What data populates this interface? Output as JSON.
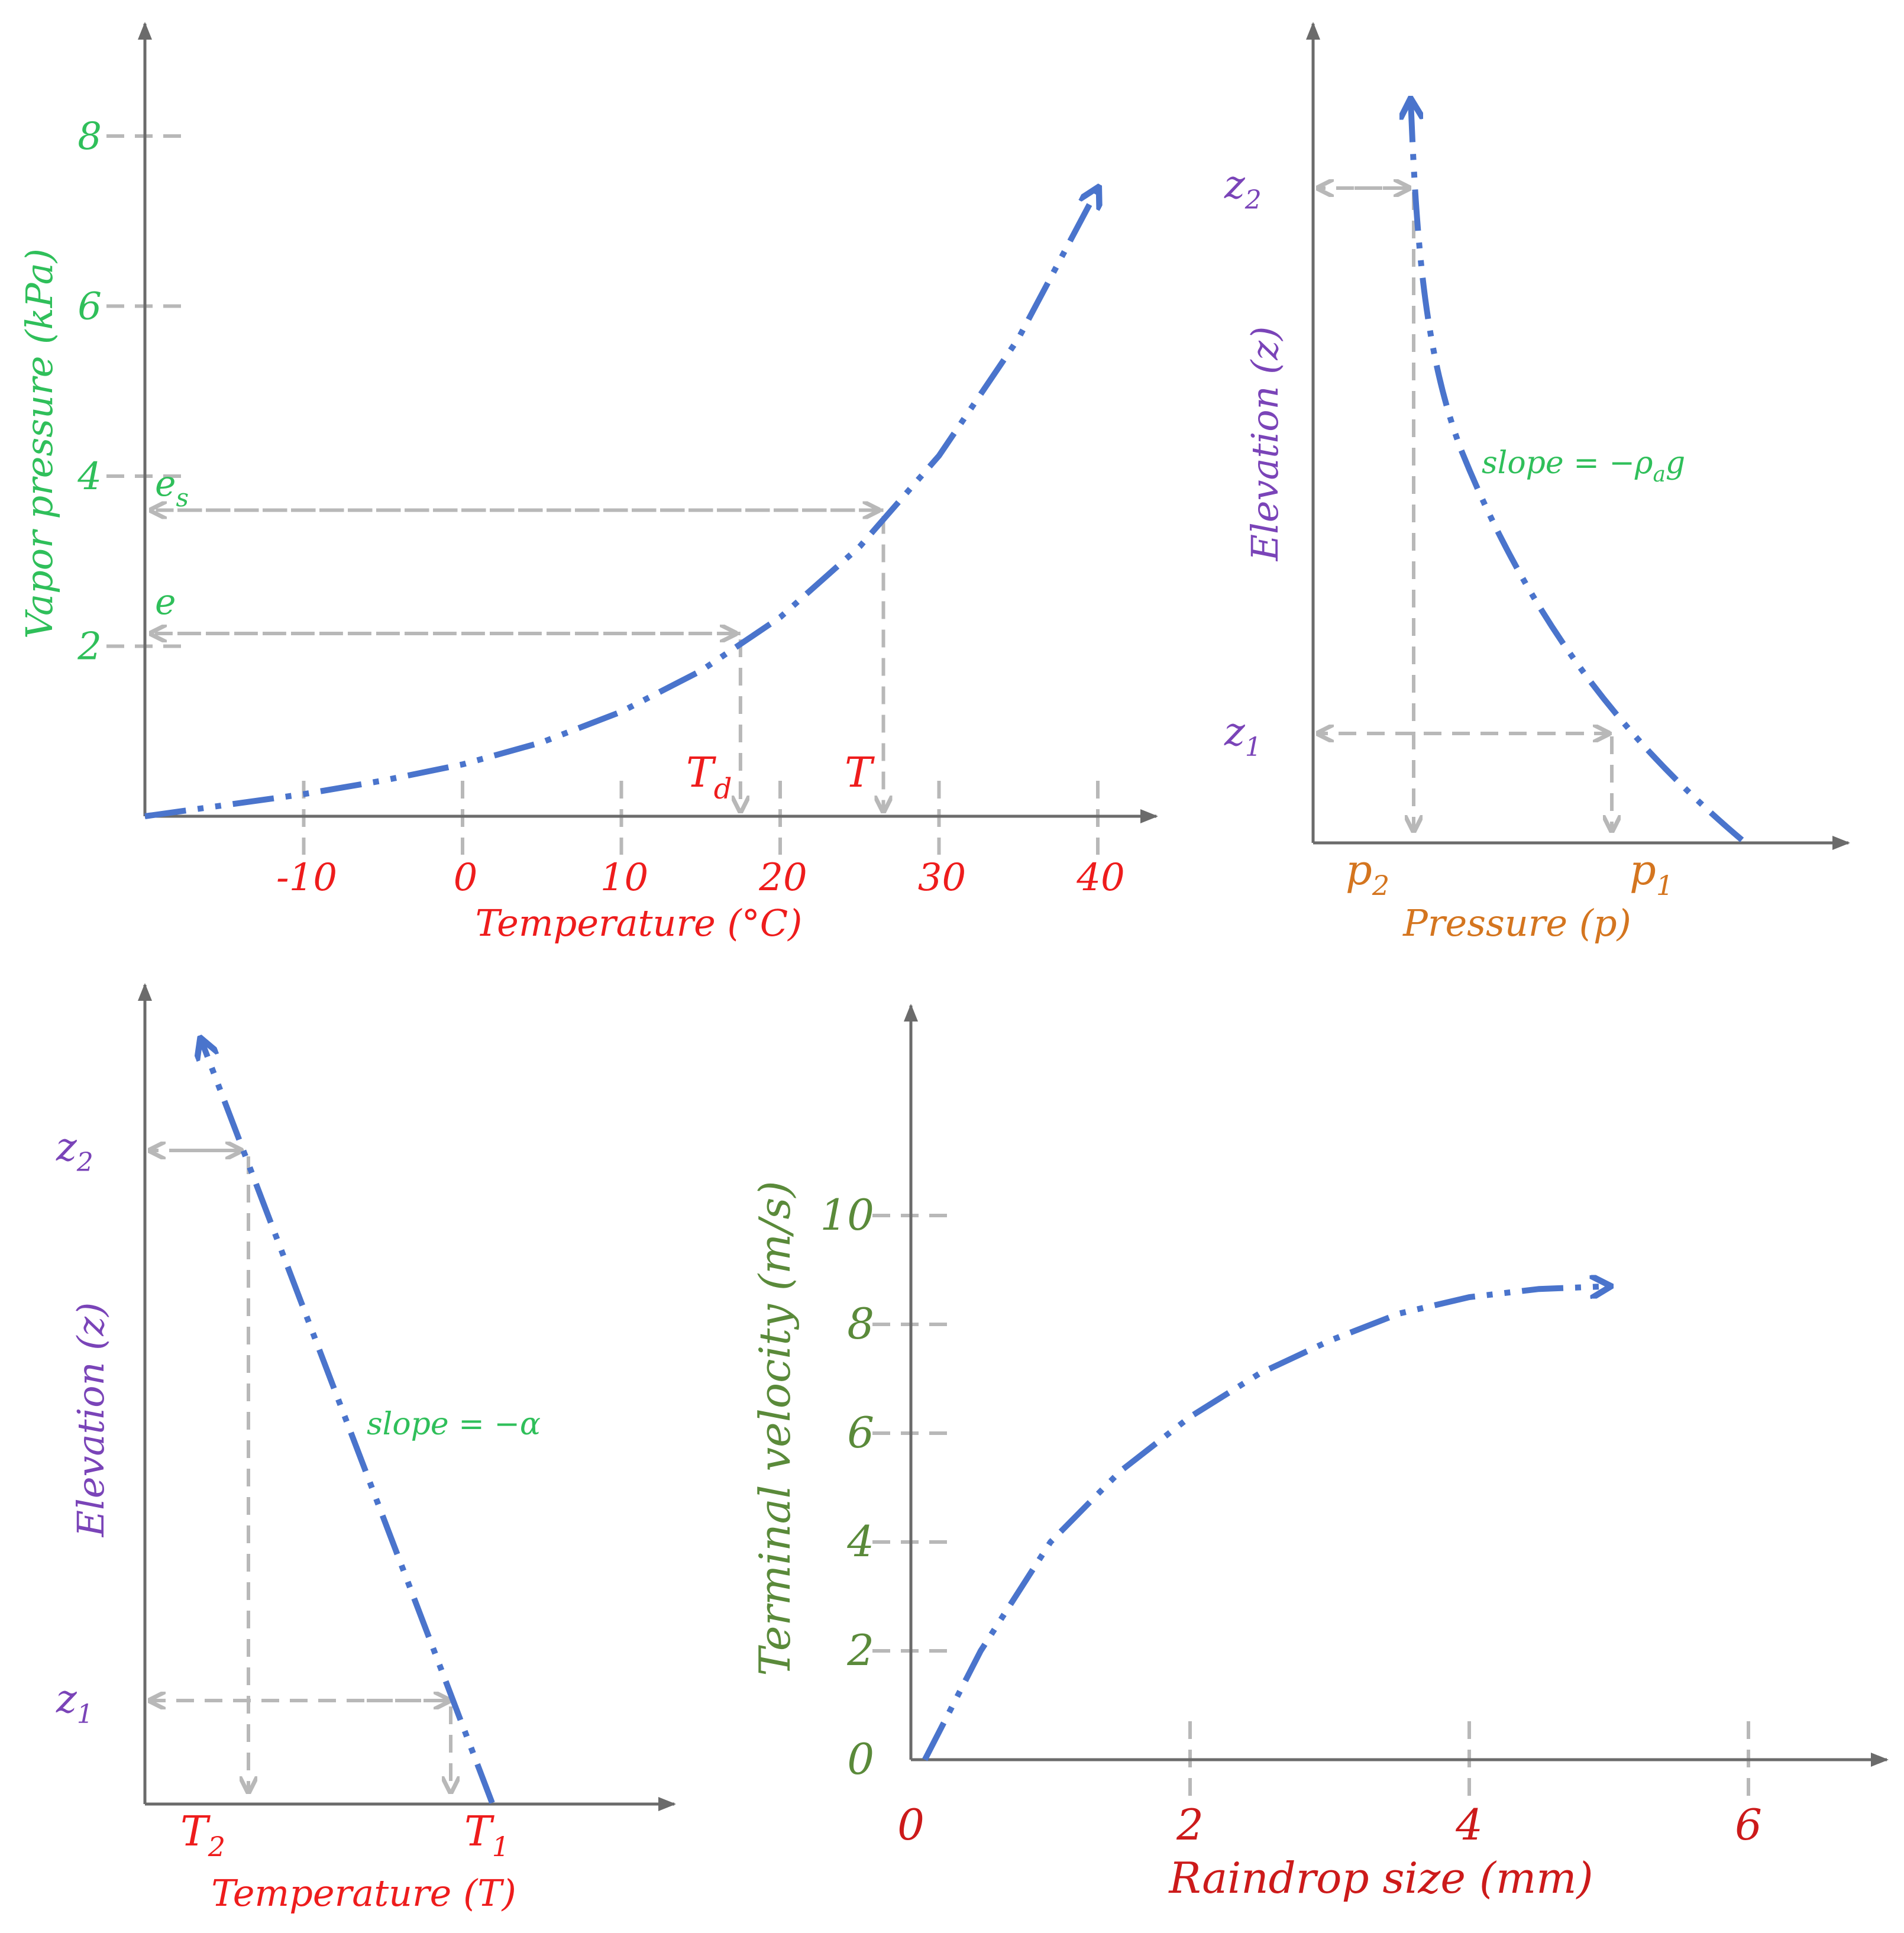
{
  "colors": {
    "axis": "#6b6b6b",
    "curve": "#4a74cc",
    "guide": "#b8b8b8",
    "red": "#ee1c1c",
    "green": "#2fbf5a",
    "olive": "#5a8a3a",
    "purple": "#7a44b8",
    "orange": "#d4751f"
  },
  "chart_data": [
    {
      "type": "line",
      "xlabel": "Temperature (°C)",
      "ylabel": "Vapor pressure (kPa)",
      "x_ticks": [
        "-10",
        "0",
        "10",
        "20",
        "30",
        "40"
      ],
      "y_ticks": [
        "2",
        "4",
        "6",
        "8"
      ],
      "xlim": [
        -20,
        42
      ],
      "ylim": [
        0,
        9
      ],
      "series": [
        {
          "x": [
            -20,
            -15,
            -10,
            -5,
            0,
            5,
            10,
            15,
            20,
            25,
            30,
            35,
            40
          ],
          "values": [
            0.0,
            0.13,
            0.26,
            0.42,
            0.61,
            0.87,
            1.23,
            1.71,
            2.34,
            3.17,
            4.24,
            5.62,
            7.38
          ]
        }
      ],
      "annotations": {
        "es_label": "e",
        "es_sub": "s",
        "e_label": "e",
        "Td_label": "T",
        "Td_sub": "d",
        "T_label": "T",
        "es_value": 3.6,
        "e_value": 2.15,
        "Td_value": 17.5,
        "T_value": 26.5
      }
    },
    {
      "type": "line",
      "xlabel": "Pressure (p)",
      "ylabel": "Elevation (z)",
      "x_ticks": [
        {
          "main": "p",
          "sub": "2"
        },
        {
          "main": "p",
          "sub": "1"
        }
      ],
      "y_ticks": [
        {
          "main": "z",
          "sub": "2"
        },
        {
          "main": "z",
          "sub": "1"
        }
      ],
      "annotation": "slope = −ρ",
      "annotation_sub": "a",
      "annotation_tail": "g"
    },
    {
      "type": "line",
      "xlabel": "Temperature (T)",
      "ylabel": "Elevation (z)",
      "x_ticks": [
        {
          "main": "T",
          "sub": "2"
        },
        {
          "main": "T",
          "sub": "1"
        }
      ],
      "y_ticks": [
        {
          "main": "z",
          "sub": "2"
        },
        {
          "main": "z",
          "sub": "1"
        }
      ],
      "annotation": "slope = −α"
    },
    {
      "type": "line",
      "xlabel": "Raindrop size (mm)",
      "ylabel": "Terminal velocity (m/s)",
      "x_ticks": [
        "0",
        "2",
        "4",
        "6"
      ],
      "y_ticks": [
        "0",
        "2",
        "4",
        "6",
        "8",
        "10"
      ],
      "xlim": [
        0,
        6.8
      ],
      "ylim": [
        0,
        12.6
      ],
      "series": [
        {
          "x": [
            0.1,
            0.5,
            1.0,
            1.5,
            2.0,
            2.5,
            3.0,
            3.5,
            4.0,
            4.5,
            5.0
          ],
          "values": [
            0.0,
            2.0,
            4.0,
            5.3,
            6.3,
            7.1,
            7.7,
            8.2,
            8.5,
            8.65,
            8.7
          ]
        }
      ]
    }
  ]
}
